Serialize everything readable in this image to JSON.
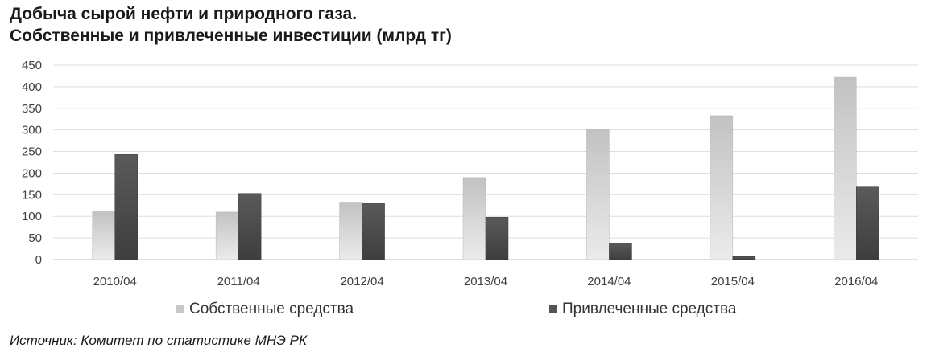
{
  "title_line1": "Добыча сырой нефти и природного газа.",
  "title_line2": "Собственные и привлеченные инвестиции (млрд тг)",
  "source": "Источник: Комитет по статистике МНЭ РК",
  "chart_data": {
    "type": "bar",
    "title": "Добыча сырой нефти и природного газа. Собственные и привлеченные инвестиции (млрд тг)",
    "categories": [
      "2010/04",
      "2011/04",
      "2012/04",
      "2013/04",
      "2014/04",
      "2015/04",
      "2016/04"
    ],
    "series": [
      {
        "name": "Собственные средства",
        "values": [
          113,
          110,
          133,
          190,
          302,
          333,
          422
        ],
        "color": "#c8c8c8"
      },
      {
        "name": "Привлеченные средства",
        "values": [
          243,
          153,
          130,
          98,
          38,
          7,
          168
        ],
        "color": "#555555"
      }
    ],
    "ylim": [
      0,
      450
    ],
    "yticks": [
      0,
      50,
      100,
      150,
      200,
      250,
      300,
      350,
      400,
      450
    ],
    "grid": true,
    "legend": "bottom"
  }
}
